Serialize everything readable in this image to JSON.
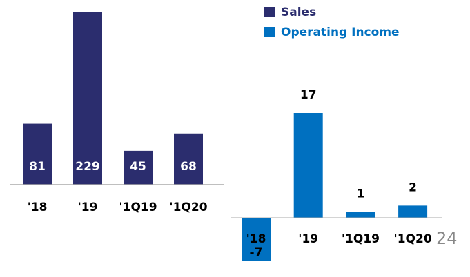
{
  "chart_data": [
    {
      "type": "bar",
      "categories": [
        "'18",
        "'19",
        "'1Q19",
        "'1Q20"
      ],
      "series": [
        {
          "name": "Sales",
          "color": "#2b2d6e",
          "values": [
            81,
            229,
            45,
            68
          ]
        }
      ],
      "ylim": [
        0,
        229
      ]
    },
    {
      "type": "bar",
      "categories": [
        "'18",
        "'19",
        "'1Q19",
        "'1Q20"
      ],
      "series": [
        {
          "name": "Operating Income",
          "color": "#0070c0",
          "values": [
            -7,
            17,
            1,
            2
          ]
        }
      ],
      "ylim": [
        -7,
        17
      ]
    }
  ],
  "page_number": "24"
}
